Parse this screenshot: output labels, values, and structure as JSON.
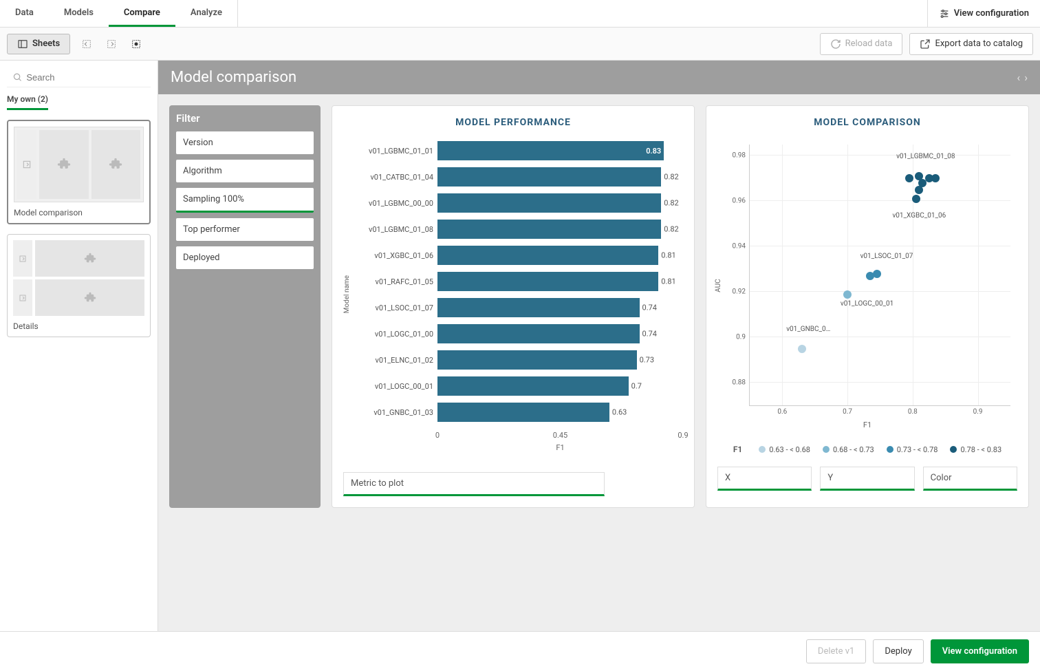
{
  "nav": {
    "tabs": [
      "Data",
      "Models",
      "Compare",
      "Analyze"
    ],
    "active_index": 2,
    "view_config": "View configuration"
  },
  "toolbar": {
    "sheets": "Sheets",
    "reload": "Reload data",
    "export": "Export data to catalog"
  },
  "sidebar": {
    "search_placeholder": "Search",
    "subtab": "My own (2)",
    "cards": [
      {
        "label": "Model comparison",
        "selected": true
      },
      {
        "label": "Details",
        "selected": false
      }
    ]
  },
  "page": {
    "title": "Model comparison"
  },
  "filter": {
    "title": "Filter",
    "items": [
      {
        "label": "Version",
        "active": false
      },
      {
        "label": "Algorithm",
        "active": false
      },
      {
        "label": "Sampling 100%",
        "active": true
      },
      {
        "label": "Top performer",
        "active": false
      },
      {
        "label": "Deployed",
        "active": false
      }
    ]
  },
  "bar_chart": {
    "title": "MODEL PERFORMANCE",
    "y_label": "Model name",
    "x_label": "F1",
    "bar_color": "#2c6e8a",
    "highlight_color": "#2c6e8a",
    "x_min": 0,
    "x_max": 0.9,
    "x_ticks": [
      0,
      0.45,
      0.9
    ],
    "bars": [
      {
        "name": "v01_LGBMC_01_01",
        "value": 0.83,
        "label_inside": true
      },
      {
        "name": "v01_CATBC_01_04",
        "value": 0.82,
        "label_inside": false
      },
      {
        "name": "v01_LGBMC_00_00",
        "value": 0.82,
        "label_inside": false
      },
      {
        "name": "v01_LGBMC_01_08",
        "value": 0.82,
        "label_inside": false
      },
      {
        "name": "v01_XGBC_01_06",
        "value": 0.81,
        "label_inside": false
      },
      {
        "name": "v01_RAFC_01_05",
        "value": 0.81,
        "label_inside": false
      },
      {
        "name": "v01_LSOC_01_07",
        "value": 0.74,
        "label_inside": false
      },
      {
        "name": "v01_LOGC_01_00",
        "value": 0.74,
        "label_inside": false
      },
      {
        "name": "v01_ELNC_01_02",
        "value": 0.73,
        "label_inside": false
      },
      {
        "name": "v01_LOGC_00_01",
        "value": 0.7,
        "label_inside": false
      },
      {
        "name": "v01_GNBC_01_03",
        "value": 0.63,
        "label_inside": false
      }
    ],
    "metric_selector": "Metric to plot"
  },
  "scatter_chart": {
    "title": "MODEL COMPARISON",
    "x_label": "F1",
    "y_label": "AUC",
    "x_min": 0.55,
    "x_max": 0.95,
    "y_min": 0.87,
    "y_max": 0.985,
    "x_ticks": [
      0.6,
      0.7,
      0.8,
      0.9
    ],
    "y_ticks": [
      0.88,
      0.9,
      0.92,
      0.94,
      0.96,
      0.98
    ],
    "point_radius": 6,
    "colors": {
      "b1": "#b8d4e3",
      "b2": "#7fb8d1",
      "b3": "#3a8bb0",
      "b4": "#1a5c7a"
    },
    "points": [
      {
        "x": 0.63,
        "y": 0.895,
        "color": "b1"
      },
      {
        "x": 0.7,
        "y": 0.919,
        "color": "b2"
      },
      {
        "x": 0.735,
        "y": 0.927,
        "color": "b3"
      },
      {
        "x": 0.745,
        "y": 0.928,
        "color": "b3"
      },
      {
        "x": 0.805,
        "y": 0.961,
        "color": "b4"
      },
      {
        "x": 0.81,
        "y": 0.965,
        "color": "b4"
      },
      {
        "x": 0.815,
        "y": 0.968,
        "color": "b4"
      },
      {
        "x": 0.795,
        "y": 0.97,
        "color": "b4"
      },
      {
        "x": 0.81,
        "y": 0.971,
        "color": "b4"
      },
      {
        "x": 0.825,
        "y": 0.97,
        "color": "b4"
      },
      {
        "x": 0.835,
        "y": 0.97,
        "color": "b4"
      }
    ],
    "annotations": [
      {
        "x": 0.64,
        "y": 0.902,
        "text": "v01_GNBC_0…"
      },
      {
        "x": 0.73,
        "y": 0.913,
        "text": "v01_LOGC_00_01"
      },
      {
        "x": 0.76,
        "y": 0.934,
        "text": "v01_LSOC_01_07"
      },
      {
        "x": 0.81,
        "y": 0.952,
        "text": "v01_XGBC_01_06"
      },
      {
        "x": 0.82,
        "y": 0.978,
        "text": "v01_LGBMC_01_08"
      }
    ],
    "legend_title": "F1",
    "legend": [
      {
        "label": "0.63 - < 0.68",
        "color": "b1"
      },
      {
        "label": "0.68 - < 0.73",
        "color": "b2"
      },
      {
        "label": "0.73 - < 0.78",
        "color": "b3"
      },
      {
        "label": "0.78 - < 0.83",
        "color": "b4"
      }
    ],
    "selectors": {
      "x": "X",
      "y": "Y",
      "color": "Color"
    }
  },
  "footer": {
    "delete": "Delete v1",
    "deploy": "Deploy",
    "view_config": "View configuration"
  }
}
